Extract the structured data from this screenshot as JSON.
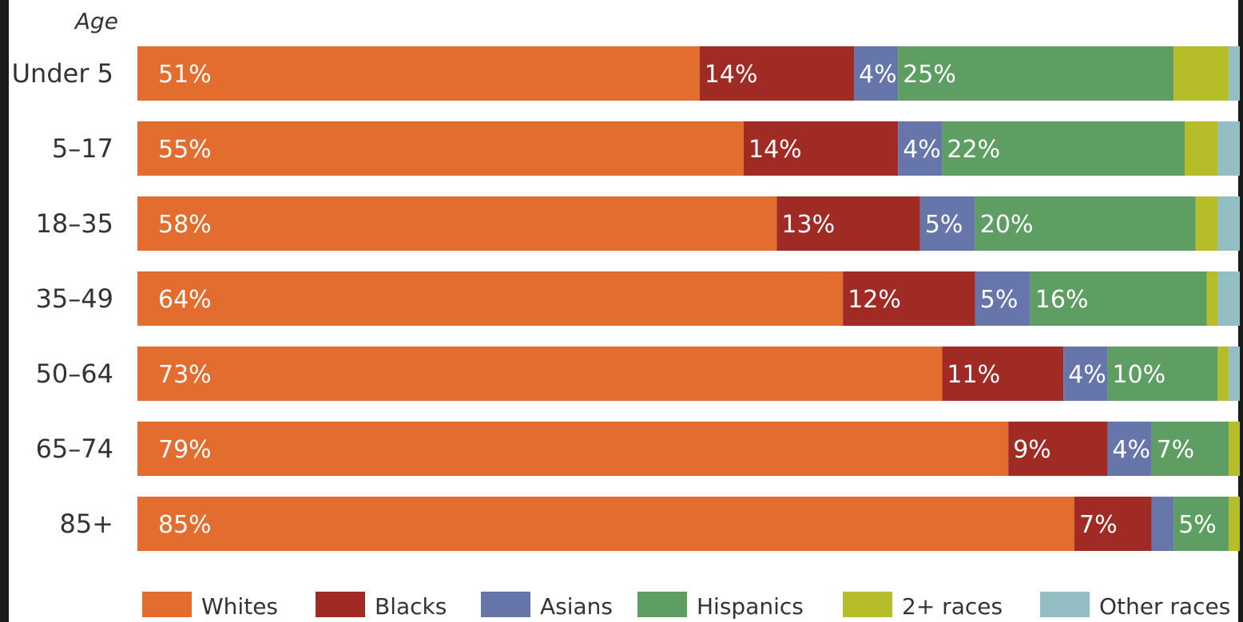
{
  "chart_data": {
    "type": "bar",
    "orientation": "horizontal",
    "stacked": true,
    "ylabel": "Age",
    "categories": [
      "Under 5",
      "5–17",
      "18–35",
      "35–49",
      "50–64",
      "65–74",
      "85+"
    ],
    "xlim": [
      0,
      100
    ],
    "grid": false,
    "legend_position": "bottom",
    "series": [
      {
        "name": "Whites",
        "color": "#E36C2F",
        "values": [
          51,
          55,
          58,
          64,
          73,
          79,
          85
        ],
        "labels": [
          "51%",
          "55%",
          "58%",
          "64%",
          "73%",
          "79%",
          "85%"
        ]
      },
      {
        "name": "Blacks",
        "color": "#A02A24",
        "values": [
          14,
          14,
          13,
          12,
          11,
          9,
          7
        ],
        "labels": [
          "14%",
          "14%",
          "13%",
          "12%",
          "11%",
          "9%",
          "7%"
        ]
      },
      {
        "name": "Asians",
        "color": "#6776AA",
        "values": [
          4,
          4,
          5,
          5,
          4,
          4,
          2
        ],
        "labels": [
          "4%",
          "4%",
          "5%",
          "5%",
          "4%",
          "4%",
          ""
        ]
      },
      {
        "name": "Hispanics",
        "color": "#5E9E62",
        "values": [
          25,
          22,
          20,
          16,
          10,
          7,
          5
        ],
        "labels": [
          "25%",
          "22%",
          "20%",
          "16%",
          "10%",
          "7%",
          "5%"
        ]
      },
      {
        "name": "2+ races",
        "color": "#B5BE29",
        "values": [
          5,
          3,
          2,
          1,
          1,
          1,
          1
        ],
        "labels": [
          "",
          "",
          "",
          "",
          "",
          "",
          ""
        ]
      },
      {
        "name": "Other races",
        "color": "#93BFC4",
        "values": [
          1,
          2,
          2,
          2,
          1,
          0,
          0
        ],
        "labels": [
          "",
          "",
          "",
          "",
          "",
          "",
          ""
        ]
      }
    ]
  }
}
